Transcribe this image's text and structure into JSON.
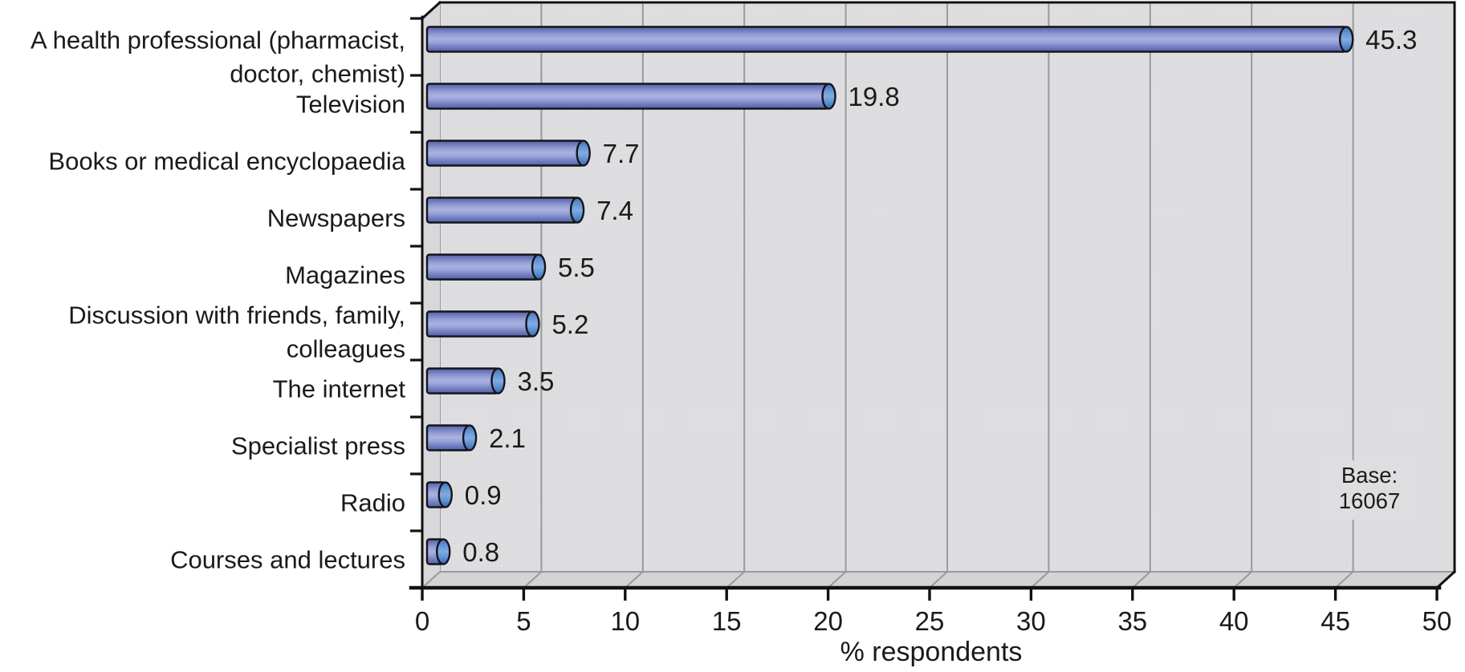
{
  "chart_data": {
    "type": "bar",
    "orientation": "horizontal",
    "style": "3d-cylinder-bars on gray 3d wall",
    "title": "",
    "xlabel": "% respondents",
    "xlim": [
      0,
      50
    ],
    "x_ticks": [
      0,
      5,
      10,
      15,
      20,
      25,
      30,
      35,
      40,
      45,
      50
    ],
    "grid": "vertical gridlines every 5 units",
    "legend": "none",
    "categories": [
      "A health professional (pharmacist, doctor, chemist)",
      "Television",
      "Books or medical encyclopaedia",
      "Newspapers",
      "Magazines",
      "Discussion with friends, family, colleagues",
      "The internet",
      "Specialist press",
      "Radio",
      "Courses and lectures"
    ],
    "category_label_lines": [
      [
        "A health professional (pharmacist,",
        "doctor, chemist)"
      ],
      [
        "Television"
      ],
      [
        "Books or medical encyclopaedia"
      ],
      [
        "Newspapers"
      ],
      [
        "Magazines"
      ],
      [
        "Discussion with friends, family,",
        "colleagues"
      ],
      [
        "The internet"
      ],
      [
        "Specialist press"
      ],
      [
        "Radio"
      ],
      [
        "Courses and lectures"
      ]
    ],
    "values": [
      45.3,
      19.8,
      7.7,
      7.4,
      5.5,
      5.2,
      3.5,
      2.1,
      0.9,
      0.8
    ],
    "value_labels": [
      "45.3",
      "19.8",
      "7.7",
      "7.4",
      "5.5",
      "5.2",
      "3.5",
      "2.1",
      "0.9",
      "0.8"
    ],
    "annotation": {
      "lines": [
        "Base:",
        "16067"
      ]
    },
    "colors": {
      "bar_body_mid": "#8793cb",
      "bar_body_light": "#a9b2e0",
      "bar_body_dark": "#515fa5",
      "bar_cap": "#6f9dd6",
      "bar_outline": "#14141c",
      "wall": "#dedee0",
      "side_wall": "#d8d8db",
      "floor": "#d4d4d7",
      "gridline": "#9a9a9e",
      "axis": "#111111",
      "text": "#1a1a1a",
      "background": "#ffffff"
    }
  }
}
